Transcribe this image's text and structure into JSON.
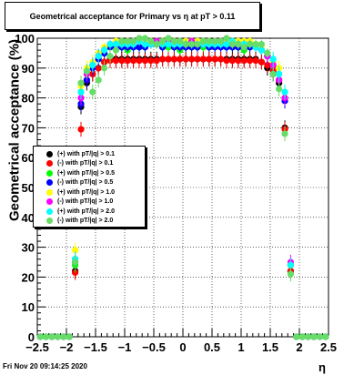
{
  "title": "Geometrical acceptance for Primary vs    η at pT  > 0.11",
  "footer_timestamp": "Fri Nov 20 09:14:25 2020",
  "chart_data": {
    "type": "scatter",
    "xlabel": "η",
    "ylabel": "Geometrical acceptance (%)",
    "xlim": [
      -2.5,
      2.5
    ],
    "ylim": [
      0,
      100
    ],
    "xticks": [
      "−2.5",
      "−2",
      "−1.5",
      "−1",
      "−0.5",
      "0",
      "0.5",
      "1",
      "1.5",
      "2",
      "2.5"
    ],
    "yticks": [
      "0",
      "10",
      "20",
      "30",
      "40",
      "50",
      "60",
      "70",
      "80",
      "90",
      "100"
    ],
    "grid": true,
    "legend_position": "middle-left",
    "x": [
      -2.45,
      -2.35,
      -2.25,
      -2.15,
      -2.05,
      -1.95,
      -1.85,
      -1.75,
      -1.65,
      -1.55,
      -1.45,
      -1.35,
      -1.25,
      -1.15,
      -1.05,
      -0.95,
      -0.85,
      -0.75,
      -0.65,
      -0.55,
      -0.45,
      -0.35,
      -0.25,
      -0.15,
      -0.05,
      0.05,
      0.15,
      0.25,
      0.35,
      0.45,
      0.55,
      0.65,
      0.75,
      0.85,
      0.95,
      1.05,
      1.15,
      1.25,
      1.35,
      1.45,
      1.55,
      1.65,
      1.75,
      1.85,
      1.95,
      2.05,
      2.15,
      2.25,
      2.35,
      2.45
    ],
    "series": [
      {
        "name": "(+) with pT/|q| > 0.1",
        "color": "#000000",
        "values": [
          0,
          0,
          0,
          0,
          0,
          0,
          22,
          77,
          85,
          88,
          90,
          92,
          93,
          93,
          93,
          93,
          93,
          93,
          93,
          93,
          93,
          93,
          93,
          93,
          93,
          93,
          93,
          93,
          93,
          93,
          93,
          93,
          93,
          93,
          93,
          93,
          93,
          93,
          92,
          90,
          88,
          85,
          70,
          22,
          0,
          0,
          0,
          0,
          0,
          0
        ]
      },
      {
        "name": "(-) with pT/|q| > 0.1",
        "color": "#ff0000",
        "values": [
          0,
          0,
          0,
          0,
          0,
          0,
          21.5,
          69.5,
          86,
          88,
          90,
          92,
          92.5,
          92.5,
          92.5,
          92.5,
          92.5,
          92.5,
          92.5,
          92.5,
          92.5,
          93,
          93,
          93,
          93,
          93,
          93,
          93,
          93,
          93,
          93,
          93,
          92.5,
          92.5,
          92.5,
          92.5,
          92.5,
          92.5,
          92,
          91,
          89,
          86,
          69.5,
          22,
          0,
          0,
          0,
          0,
          0,
          0
        ]
      },
      {
        "name": "(+) with pT/|q| > 0.5",
        "color": "#00ff00",
        "values": [
          0,
          0,
          0,
          0,
          0,
          0,
          24,
          82,
          88,
          91,
          93,
          95,
          97,
          97,
          97,
          96,
          97,
          97,
          97,
          98,
          98,
          97,
          97,
          97,
          96,
          97,
          97,
          97,
          97,
          97,
          98,
          98,
          97,
          97,
          97,
          96,
          97,
          97,
          96,
          94,
          92,
          88,
          80,
          24,
          0,
          0,
          0,
          0,
          0,
          0
        ]
      },
      {
        "name": "(-) with pT/|q| > 0.5",
        "color": "#0000ff",
        "values": [
          0,
          0,
          0,
          0,
          0,
          0,
          25,
          78,
          86,
          90,
          93,
          95,
          97,
          97,
          97,
          97,
          97,
          97,
          97,
          98,
          98,
          97,
          98,
          97,
          97,
          97,
          97,
          97,
          98,
          97,
          97,
          97,
          97,
          97,
          97,
          97,
          97,
          97,
          96,
          94,
          91,
          86,
          79,
          24,
          0,
          0,
          0,
          0,
          0,
          0
        ]
      },
      {
        "name": "(+) with pT/|q| > 1.0",
        "color": "#ffff00",
        "values": [
          0,
          0,
          0,
          0,
          0,
          0,
          29,
          84,
          90,
          92,
          95,
          97,
          98,
          99,
          99,
          99,
          99,
          99,
          99,
          99,
          99,
          99,
          99,
          99,
          99,
          99,
          99,
          99,
          99,
          99,
          99,
          99,
          99,
          99,
          99,
          99,
          99,
          98,
          97,
          95,
          92,
          90,
          82,
          24,
          0,
          0,
          0,
          0,
          0,
          0
        ]
      },
      {
        "name": "(-) with pT/|q| > 1.0",
        "color": "#ff00ff",
        "values": [
          0,
          0,
          0,
          0,
          0,
          0,
          26,
          80,
          88,
          91,
          94,
          96,
          98,
          98,
          98,
          98,
          99,
          99,
          98,
          98,
          99,
          98,
          99,
          98,
          98,
          98,
          99,
          98,
          98,
          98,
          99,
          99,
          98,
          98,
          98,
          98,
          98,
          97,
          96,
          94,
          91,
          86,
          80,
          25,
          0,
          0,
          0,
          0,
          0,
          0
        ]
      },
      {
        "name": "(+) with pT/|q| > 2.0",
        "color": "#00ffff",
        "values": [
          0,
          0,
          0,
          0,
          0,
          0,
          26,
          82,
          89,
          91,
          94,
          96,
          98,
          98,
          98,
          98,
          98,
          99,
          98,
          98,
          98,
          98,
          98,
          98,
          98,
          98,
          98,
          98,
          98,
          98,
          98,
          98,
          98,
          99,
          98,
          98,
          98,
          97,
          96,
          95,
          93,
          88,
          82,
          24,
          0,
          0,
          0,
          0,
          0,
          0
        ]
      },
      {
        "name": "(-) with pT/|q| > 2.0",
        "color": "#66dd66",
        "values": [
          0,
          0,
          0,
          0,
          0,
          0,
          25,
          85,
          89,
          82,
          86,
          90,
          94,
          96,
          99,
          99,
          99,
          100,
          100,
          99,
          98,
          99,
          100,
          99,
          99,
          98,
          98,
          98,
          99,
          99,
          99,
          99,
          100,
          98,
          98,
          97,
          98,
          98,
          98,
          95,
          88,
          83,
          68,
          21,
          0,
          0,
          0,
          0,
          0,
          0
        ]
      }
    ]
  }
}
